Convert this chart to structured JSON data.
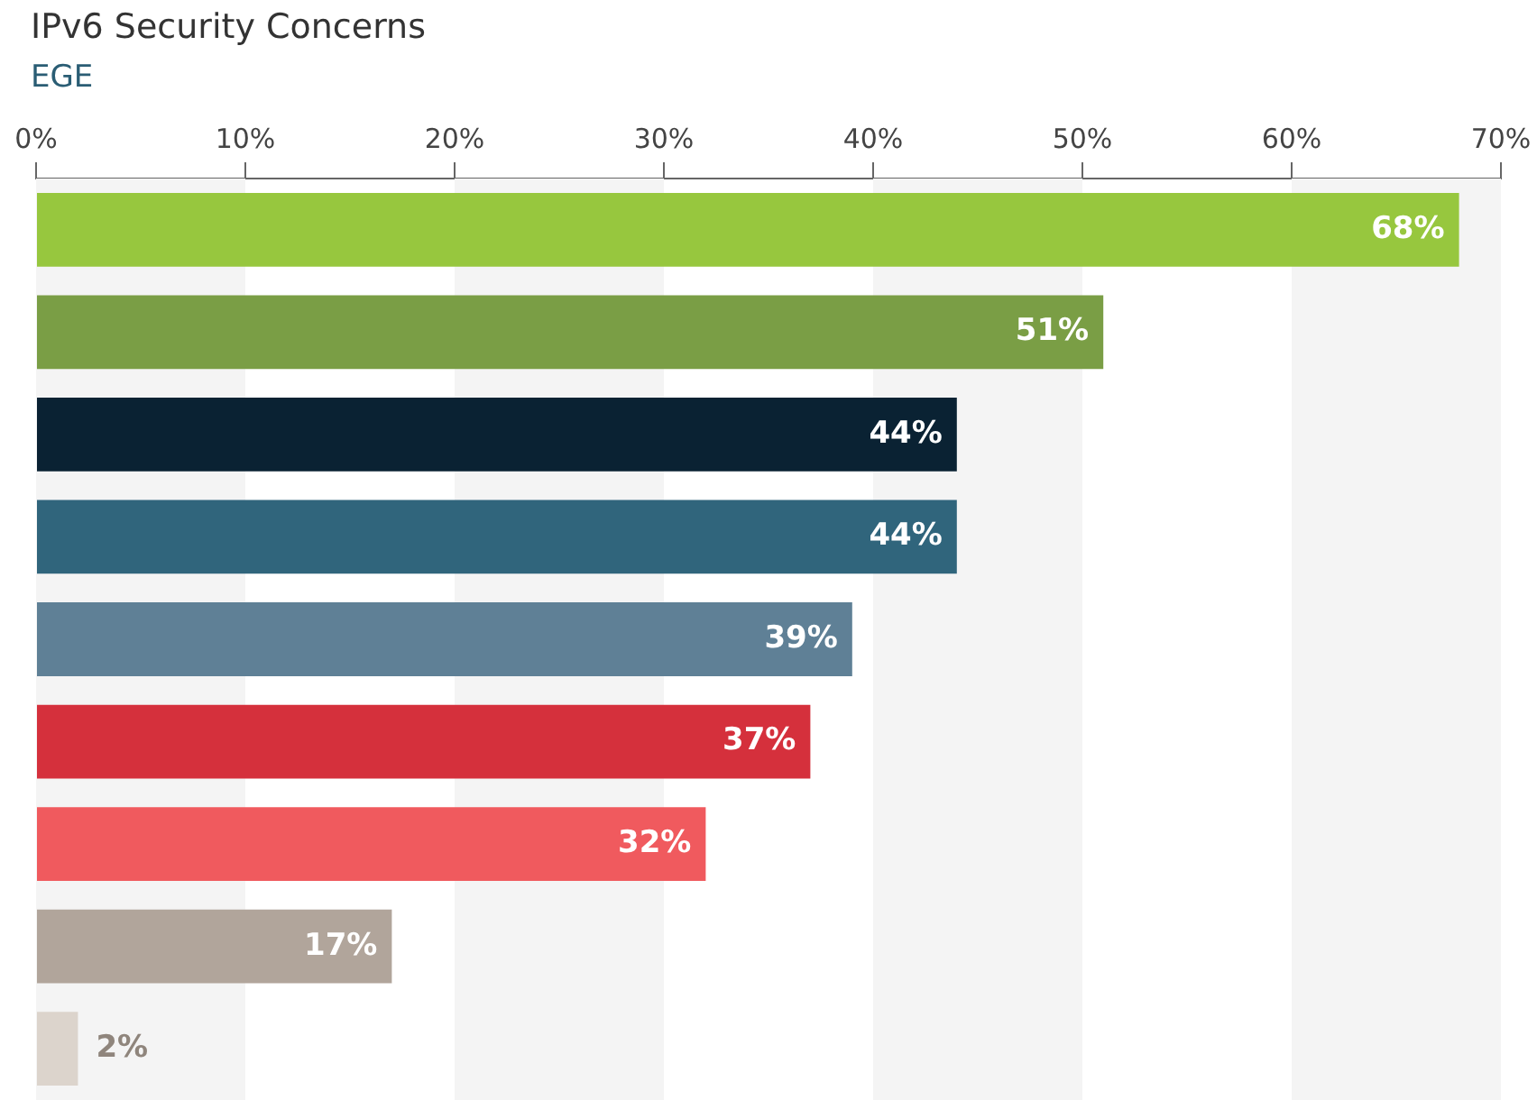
{
  "chart_data": {
    "type": "bar",
    "orientation": "horizontal",
    "title": "IPv6 Security Concerns",
    "subtitle": "EGE",
    "categories": [
      null,
      null,
      null,
      null,
      null,
      null,
      null,
      null,
      null
    ],
    "values": [
      68,
      51,
      44,
      44,
      39,
      37,
      32,
      17,
      2
    ],
    "colors": [
      "#97c73e",
      "#7a9e45",
      "#0a2233",
      "#30657c",
      "#5f8096",
      "#d5303c",
      "#f05a5e",
      "#b1a59b",
      "#dcd4cc"
    ],
    "value_labels": [
      "68%",
      "51%",
      "44%",
      "44%",
      "39%",
      "37%",
      "32%",
      "17%",
      "2%"
    ],
    "xlim": [
      0,
      70
    ],
    "xticks": [
      {
        "value": 0,
        "label": "0%"
      },
      {
        "value": 10,
        "label": "10%"
      },
      {
        "value": 20,
        "label": "20%"
      },
      {
        "value": 30,
        "label": "30%"
      },
      {
        "value": 40,
        "label": "40%"
      },
      {
        "value": 50,
        "label": "50%"
      },
      {
        "value": 60,
        "label": "60%"
      },
      {
        "value": 70,
        "label": "70%"
      }
    ],
    "bands": [
      {
        "axis": "x",
        "from": 0,
        "to": 10,
        "color": "#f4f4f4"
      },
      {
        "axis": "x",
        "from": 20,
        "to": 30,
        "color": "#f4f4f4"
      },
      {
        "axis": "x",
        "from": 40,
        "to": 50,
        "color": "#f4f4f4"
      },
      {
        "axis": "x",
        "from": 60,
        "to": 70,
        "color": "#f4f4f4"
      }
    ],
    "grid": false,
    "legend": false
  }
}
